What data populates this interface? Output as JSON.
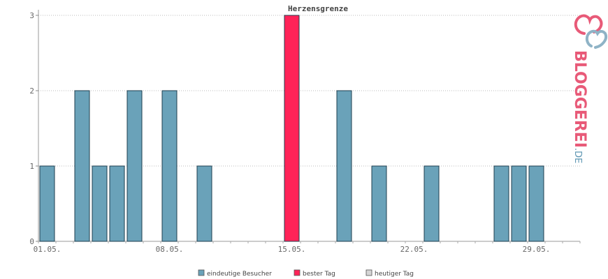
{
  "chart_data": {
    "type": "bar",
    "title": "Herzensgrenze",
    "xlabel": "",
    "ylabel": "",
    "ylim": [
      0,
      3
    ],
    "yticks": [
      0,
      1,
      2,
      3
    ],
    "grid": true,
    "legend_position": "bottom",
    "days": 31,
    "x_tick_labels": [
      {
        "label": "01.05.",
        "day": 1
      },
      {
        "label": "08.05.",
        "day": 8
      },
      {
        "label": "15.05.",
        "day": 15
      },
      {
        "label": "22.05.",
        "day": 22
      },
      {
        "label": "29.05.",
        "day": 29
      }
    ],
    "bars": [
      {
        "day": 1,
        "value": 1,
        "series": "visitors"
      },
      {
        "day": 3,
        "value": 2,
        "series": "visitors"
      },
      {
        "day": 4,
        "value": 1,
        "series": "visitors"
      },
      {
        "day": 5,
        "value": 1,
        "series": "visitors"
      },
      {
        "day": 6,
        "value": 2,
        "series": "visitors"
      },
      {
        "day": 8,
        "value": 2,
        "series": "visitors"
      },
      {
        "day": 10,
        "value": 1,
        "series": "visitors"
      },
      {
        "day": 15,
        "value": 3,
        "series": "best"
      },
      {
        "day": 18,
        "value": 2,
        "series": "visitors"
      },
      {
        "day": 20,
        "value": 1,
        "series": "visitors"
      },
      {
        "day": 23,
        "value": 1,
        "series": "visitors"
      },
      {
        "day": 27,
        "value": 1,
        "series": "visitors"
      },
      {
        "day": 28,
        "value": 1,
        "series": "visitors"
      },
      {
        "day": 29,
        "value": 1,
        "series": "visitors"
      }
    ],
    "series": [
      {
        "key": "visitors",
        "name": "eindeutige Besucher",
        "color": "#6aa2b9"
      },
      {
        "key": "best",
        "name": "bester Tag",
        "color": "#ff2358"
      },
      {
        "key": "today",
        "name": "heutiger Tag",
        "color": "#d5d5d5"
      }
    ]
  },
  "logo": {
    "brand": "BLOGGEREI",
    "suffix": ".DE",
    "brand_color": "#e85a78",
    "suffix_color": "#5f97b3"
  }
}
